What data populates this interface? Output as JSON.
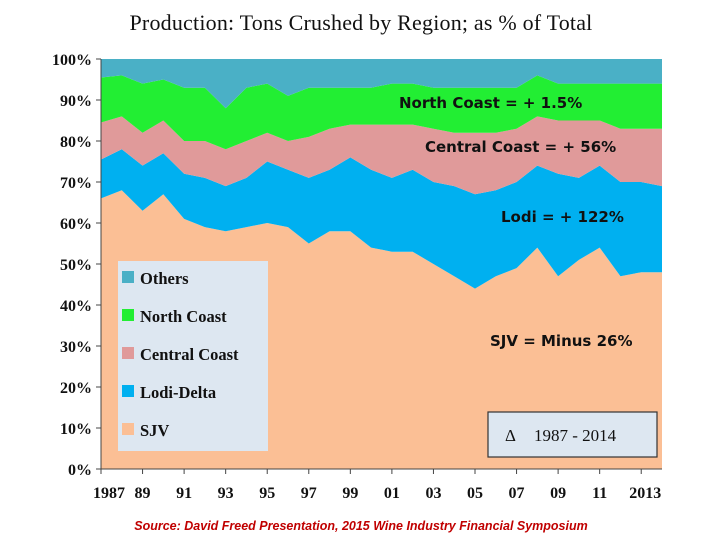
{
  "chart_data": {
    "type": "area",
    "stacked": true,
    "title": "Production: Tons Crushed by Region; as % of Total",
    "xlabel": "",
    "ylabel": "",
    "x": [
      1987,
      1988,
      1989,
      1990,
      1991,
      1992,
      1993,
      1994,
      1995,
      1996,
      1997,
      1998,
      1999,
      2000,
      2001,
      2002,
      2003,
      2004,
      2005,
      2006,
      2007,
      2008,
      2009,
      2010,
      2011,
      2012,
      2013,
      2014
    ],
    "x_tick_labels": [
      "1987",
      "89",
      "91",
      "93",
      "95",
      "97",
      "99",
      "01",
      "03",
      "05",
      "07",
      "09",
      "11",
      "2013"
    ],
    "y_tick_labels": [
      "0%",
      "10%",
      "20%",
      "30%",
      "40%",
      "50%",
      "60%",
      "70%",
      "80%",
      "90%",
      "100%"
    ],
    "ylim": [
      0,
      100
    ],
    "series": [
      {
        "name": "SJV",
        "color": "#fbbf95",
        "values": [
          66,
          68,
          63,
          67,
          61,
          59,
          58,
          59,
          60,
          59,
          55,
          58,
          58,
          54,
          53,
          53,
          50,
          47,
          44,
          47,
          49,
          54,
          47,
          51,
          54,
          47,
          48,
          48
        ]
      },
      {
        "name": "Lodi-Delta",
        "color": "#00b0f0",
        "values": [
          9.5,
          10,
          11,
          10,
          11,
          12,
          11,
          12,
          15,
          14,
          16,
          15,
          18,
          19,
          18,
          20,
          20,
          22,
          23,
          21,
          21,
          20,
          25,
          20,
          20,
          23,
          22,
          21
        ]
      },
      {
        "name": "Central Coast",
        "color": "#e09a9a",
        "values": [
          9,
          8,
          8,
          8,
          8,
          9,
          9,
          9,
          7,
          7,
          10,
          10,
          8,
          11,
          13,
          11,
          13,
          13,
          15,
          14,
          13,
          12,
          13,
          14,
          11,
          13,
          13,
          14
        ]
      },
      {
        "name": "North Coast",
        "color": "#22ee33",
        "values": [
          11,
          10,
          12,
          10,
          13,
          13,
          10,
          13,
          12,
          11,
          12,
          10,
          9,
          9,
          10,
          10,
          10,
          11,
          11,
          11,
          10,
          10,
          9,
          9,
          9,
          11,
          11,
          11
        ]
      },
      {
        "name": "Others",
        "color": "#4ab0c6",
        "values": [
          4.5,
          4,
          6,
          5,
          7,
          7,
          12,
          7,
          6,
          9,
          7,
          7,
          7,
          7,
          6,
          6,
          7,
          7,
          7,
          7,
          7,
          4,
          6,
          6,
          6,
          6,
          6,
          6
        ]
      }
    ],
    "legend": {
      "position": "left-middle",
      "order": [
        "Others",
        "North Coast",
        "Central Coast",
        "Lodi-Delta",
        "SJV"
      ]
    },
    "annotations": [
      {
        "text": "North Coast  = + 1.5%",
        "near": "North Coast"
      },
      {
        "text": "Central Coast  =  + 56%",
        "near": "Central Coast"
      },
      {
        "text": "Lodi  = + 122%",
        "near": "Lodi-Delta"
      },
      {
        "text": "SJV = Minus 26%",
        "near": "SJV"
      }
    ],
    "period_box": {
      "symbol": "Δ",
      "text": "1987 - 2014"
    }
  },
  "source": "Source: David Freed Presentation, 2015 Wine Industry Financial Symposium"
}
